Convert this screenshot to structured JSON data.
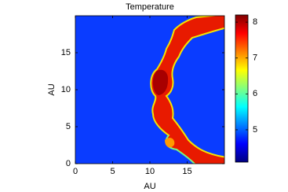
{
  "chart_data": {
    "type": "heatmap",
    "title": "Temperature",
    "xlabel": "AU",
    "ylabel": "AU",
    "xlim": [
      0,
      20
    ],
    "ylim": [
      0,
      20
    ],
    "xticks": [
      0,
      5,
      10,
      15
    ],
    "yticks": [
      0,
      5,
      10,
      15
    ],
    "colormap": "jet",
    "clim": [
      4.1,
      8.2
    ],
    "colorbar_ticks": [
      5,
      6,
      7,
      8
    ]
  }
}
